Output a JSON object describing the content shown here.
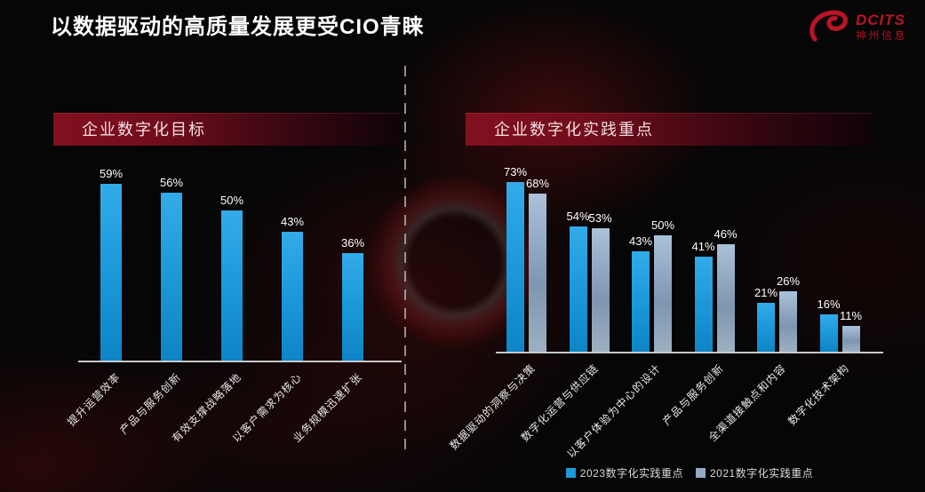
{
  "page": {
    "title": "以数据驱动的高质量发展更受CIO青睐"
  },
  "logo": {
    "brand": "DCITS",
    "company": "神州信息",
    "color": "#b81526"
  },
  "panels": [
    {
      "header": "企业数字化目标"
    },
    {
      "header": "企业数字化实践重点"
    }
  ],
  "legend": [
    {
      "label": "2023数字化实践重点",
      "color": "#1e9adb"
    },
    {
      "label": "2021数字化实践重点",
      "color": "#93aac4"
    }
  ],
  "colors": {
    "background": "#060606",
    "banner_red": "#82101f",
    "bar_blue": "#1e9adb",
    "bar_gray_blue": "#93aac4",
    "baseline": "#c8c8c8",
    "title_text": "#ffffff",
    "logo_red": "#b81526"
  },
  "chart_data": [
    {
      "type": "bar",
      "title": "企业数字化目标",
      "categories": [
        "提升运营效率",
        "产品与服务创新",
        "有效支撑战略落地",
        "以客户需求为核心",
        "业务规模迅速扩张"
      ],
      "values": [
        59,
        56,
        50,
        43,
        36
      ],
      "unit": "%",
      "ylim": [
        0,
        100
      ],
      "grid": false,
      "legend": false,
      "value_labels": true,
      "category_label_rotation": -45
    },
    {
      "type": "bar",
      "title": "企业数字化实践重点",
      "categories": [
        "数据驱动的洞察与决策",
        "数字化运营与供应链",
        "以客户体验为中心的设计",
        "产品与服务创新",
        "全渠道接触点和内容",
        "数字化技术架构"
      ],
      "series": [
        {
          "name": "2023数字化实践重点",
          "color": "#1e9adb",
          "values": [
            73,
            54,
            43,
            41,
            21,
            16
          ]
        },
        {
          "name": "2021数字化实践重点",
          "color": "#93aac4",
          "values": [
            68,
            53,
            50,
            46,
            26,
            11
          ]
        }
      ],
      "unit": "%",
      "ylim": [
        0,
        100
      ],
      "grid": false,
      "legend_position": "bottom",
      "value_labels": true,
      "category_label_rotation": -45
    }
  ]
}
